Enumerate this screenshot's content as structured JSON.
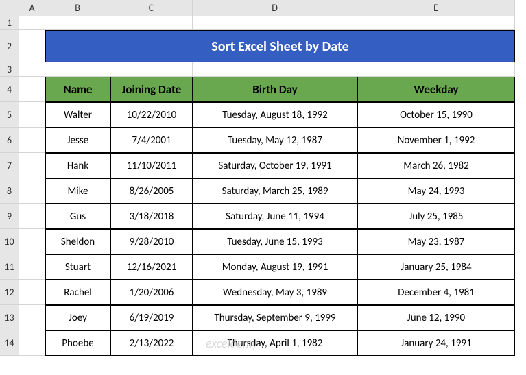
{
  "columns": [
    "A",
    "B",
    "C",
    "D",
    "E"
  ],
  "rows": [
    "1",
    "2",
    "3",
    "4",
    "5",
    "6",
    "7",
    "8",
    "9",
    "10",
    "11",
    "12",
    "13",
    "14"
  ],
  "title": "Sort Excel Sheet by Date",
  "title_bg": "#355ec2",
  "title_color": "#ffffff",
  "header_bg": "#6aa84f",
  "headers": {
    "name": "Name",
    "joining": "Joining Date",
    "birthday": "Birth Day",
    "weekday": "Weekday"
  },
  "data": [
    {
      "name": "Walter",
      "joining": "10/22/2010",
      "birthday": "Tuesday, August 18, 1992",
      "weekday": "October 15, 1990"
    },
    {
      "name": "Jesse",
      "joining": "7/4/2001",
      "birthday": "Tuesday, May 12, 1987",
      "weekday": "November 1, 1992"
    },
    {
      "name": "Hank",
      "joining": "11/10/2011",
      "birthday": "Saturday, October 19, 1991",
      "weekday": "March 26, 1982"
    },
    {
      "name": "Mike",
      "joining": "8/26/2005",
      "birthday": "Saturday, March 25, 1989",
      "weekday": "May 24, 1993"
    },
    {
      "name": "Gus",
      "joining": "3/18/2018",
      "birthday": "Saturday, June 11, 1994",
      "weekday": "July 25, 1985"
    },
    {
      "name": "Sheldon",
      "joining": "9/28/2010",
      "birthday": "Tuesday, June 15, 1993",
      "weekday": "May 23, 1987"
    },
    {
      "name": "Stuart",
      "joining": "12/16/2021",
      "birthday": "Monday, August 19, 1991",
      "weekday": "January 25, 1984"
    },
    {
      "name": "Rachel",
      "joining": "1/20/2006",
      "birthday": "Wednesday, May 3, 1989",
      "weekday": "December 4, 1981"
    },
    {
      "name": "Joey",
      "joining": "6/19/2019",
      "birthday": "Thursday, September 9, 1999",
      "weekday": "June 12, 1990"
    },
    {
      "name": "Phoebe",
      "joining": "2/13/2022",
      "birthday": "Thursday, April 1, 1982",
      "weekday": "January 24, 1991"
    }
  ],
  "watermark": "exceldemy"
}
